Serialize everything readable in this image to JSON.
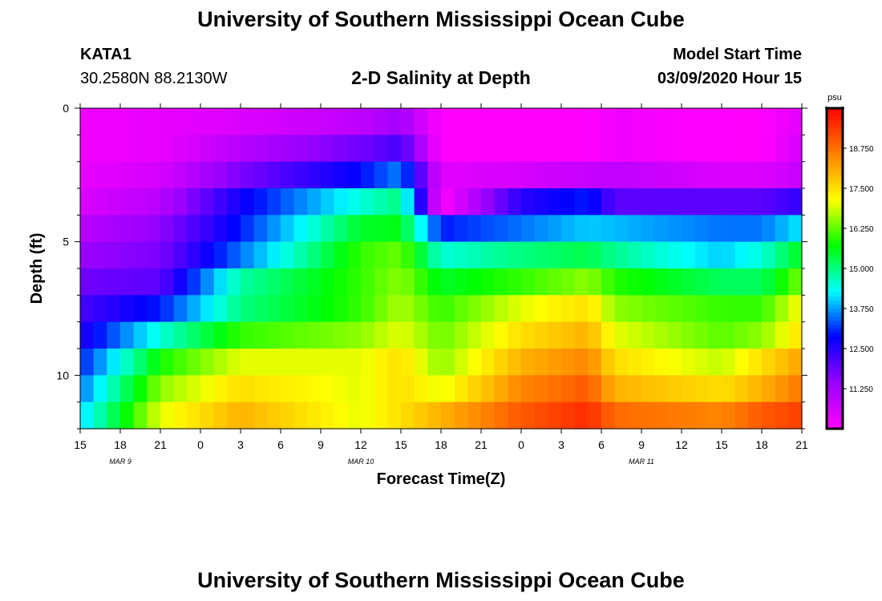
{
  "page": {
    "title_top": "University of Southern Mississippi Ocean Cube",
    "title_bottom": "University of Southern Mississippi Ocean Cube",
    "station": "KATA1",
    "coords": "30.2580N 88.2130W",
    "plot_title": "2-D Salinity at Depth",
    "model_start_label": "Model Start Time",
    "model_start_value": "03/09/2020 Hour 15"
  },
  "colors": {
    "background": "#ffffff",
    "text": "#000000",
    "palette": [
      "#ff00ff",
      "#9900ff",
      "#0000ff",
      "#00ffff",
      "#00ff00",
      "#ffff00",
      "#ff8000",
      "#ff0000"
    ]
  },
  "chart_data": {
    "type": "heatmap",
    "title": "2-D Salinity at Depth",
    "xlabel": "Forecast Time(Z)",
    "ylabel": "Depth (ft)",
    "x_ticks": [
      "15",
      "18",
      "21",
      "0",
      "3",
      "6",
      "9",
      "12",
      "15",
      "18",
      "21",
      "0",
      "3",
      "6",
      "9",
      "12",
      "15",
      "18",
      "21"
    ],
    "date_labels": [
      {
        "text": "MAR  9",
        "tick": "18"
      },
      {
        "text": "MAR  10",
        "tick": "12"
      },
      {
        "text": "MAR  11",
        "tick": "9"
      }
    ],
    "y_ticks": [
      "0",
      "5",
      "10"
    ],
    "ylim": [
      0,
      12
    ],
    "y_inverted": true,
    "colorbar": {
      "unit": "psu",
      "vmin": 10,
      "vmax": 20,
      "ticks": [
        "11.250",
        "12.500",
        "13.750",
        "15.000",
        "16.250",
        "17.500",
        "18.750"
      ]
    },
    "time_steps": 54,
    "depth_rows": 12,
    "depth_profile_at_key_hours": {
      "hours_from_start": [
        0,
        6,
        12,
        21,
        24,
        27,
        33,
        38,
        40,
        48,
        51,
        54
      ],
      "note": "rows = depth 0..11 ft (top to bottom), values in psu",
      "rows": [
        [
          10.2,
          10.3,
          10.5,
          10.9,
          11.3,
          10.0,
          10.0,
          10.0,
          10.2,
          10.0,
          10.0,
          10.4
        ],
        [
          10.2,
          10.3,
          11.0,
          11.8,
          12.2,
          10.0,
          10.0,
          10.0,
          10.2,
          10.0,
          10.0,
          10.6
        ],
        [
          10.3,
          10.6,
          11.7,
          12.9,
          13.6,
          10.4,
          10.6,
          10.8,
          10.9,
          10.5,
          10.5,
          10.8
        ],
        [
          10.5,
          11.0,
          12.7,
          14.5,
          15.0,
          10.0,
          12.5,
          13.0,
          12.0,
          12.0,
          12.0,
          12.4
        ],
        [
          11.0,
          11.5,
          13.0,
          15.5,
          15.6,
          13.0,
          13.5,
          14.0,
          13.9,
          13.5,
          13.5,
          14.2
        ],
        [
          11.4,
          11.7,
          13.5,
          16.0,
          16.3,
          14.5,
          15.0,
          15.3,
          14.9,
          14.0,
          14.5,
          15.6
        ],
        [
          11.8,
          12.0,
          14.8,
          16.0,
          16.5,
          15.5,
          16.0,
          16.5,
          15.9,
          15.2,
          15.2,
          16.4
        ],
        [
          12.2,
          13.0,
          15.0,
          16.0,
          16.7,
          16.0,
          17.0,
          17.5,
          16.5,
          16.0,
          16.0,
          17.2
        ],
        [
          12.5,
          14.5,
          16.0,
          16.5,
          17.0,
          16.3,
          17.5,
          18.0,
          17.0,
          16.2,
          16.5,
          17.5
        ],
        [
          13.0,
          15.8,
          17.0,
          17.0,
          17.5,
          16.5,
          18.0,
          18.5,
          17.5,
          16.8,
          17.5,
          18.2
        ],
        [
          13.5,
          16.5,
          17.5,
          17.0,
          17.5,
          17.0,
          18.5,
          19.0,
          18.0,
          17.5,
          18.0,
          18.7
        ],
        [
          14.0,
          17.0,
          18.0,
          17.0,
          17.5,
          18.0,
          19.0,
          19.5,
          18.8,
          18.5,
          19.0,
          19.3
        ]
      ]
    }
  }
}
